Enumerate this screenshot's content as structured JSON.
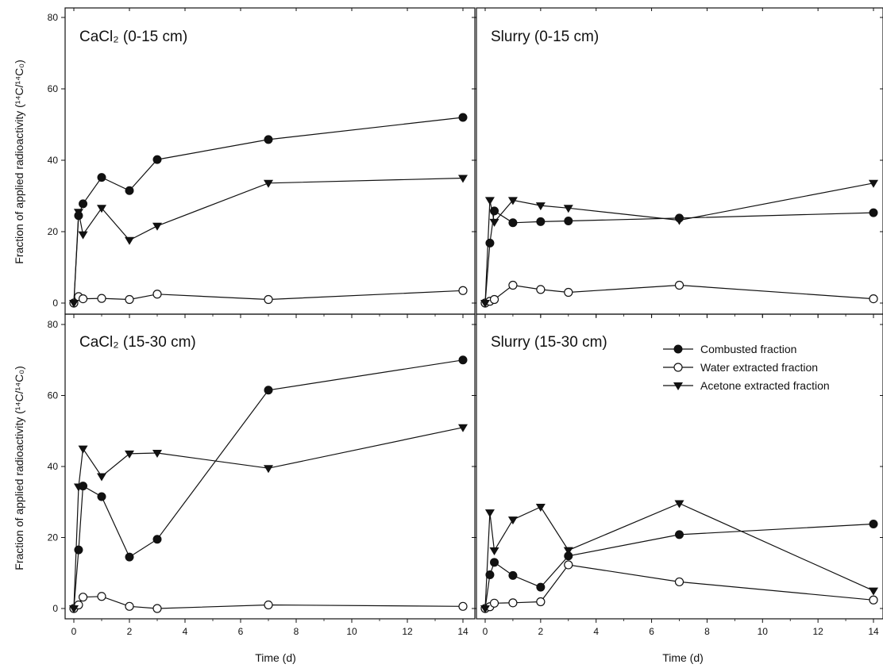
{
  "figure": {
    "ylabel": "Fraction of applied radioactivity (¹⁴C/¹⁴C₀)",
    "xlabel": "Time (d)"
  },
  "legend": [
    {
      "name": "Combusted fraction",
      "marker": "filled-circle"
    },
    {
      "name": "Water extracted fraction",
      "marker": "open-circle"
    },
    {
      "name": "Acetone extracted fraction",
      "marker": "filled-triangle-down"
    }
  ],
  "colors": {
    "ink": "#111111",
    "background": "#ffffff"
  },
  "chart_data": [
    {
      "type": "line",
      "title": "CaCl₂ (0-15 cm)",
      "xlim": [
        0,
        14
      ],
      "ylim": [
        0,
        80
      ],
      "xticks": [
        0,
        2,
        4,
        6,
        8,
        10,
        12,
        14
      ],
      "yticks": [
        0,
        20,
        40,
        60,
        80
      ],
      "series": [
        {
          "name": "Combusted fraction",
          "marker": "filled-circle",
          "x": [
            0,
            0.17,
            0.33,
            1,
            2,
            3,
            7,
            14
          ],
          "y": [
            0,
            24.5,
            27.8,
            35.2,
            31.5,
            40.2,
            45.8,
            52
          ]
        },
        {
          "name": "Water extracted fraction",
          "marker": "open-circle",
          "x": [
            0,
            0.17,
            0.33,
            1,
            2,
            3,
            7,
            14
          ],
          "y": [
            0,
            1.8,
            1.2,
            1.3,
            1,
            2.5,
            1,
            3.5
          ]
        },
        {
          "name": "Acetone extracted fraction",
          "marker": "filled-triangle-down",
          "x": [
            0,
            0.17,
            0.33,
            1,
            2,
            3,
            7,
            14
          ],
          "y": [
            0,
            25.5,
            19.2,
            26.6,
            17.6,
            21.6,
            33.6,
            35
          ]
        }
      ]
    },
    {
      "type": "line",
      "title": "Slurry (0-15 cm)",
      "xlim": [
        0,
        14
      ],
      "ylim": [
        0,
        80
      ],
      "xticks": [
        0,
        2,
        4,
        6,
        8,
        10,
        12,
        14
      ],
      "yticks": [
        0,
        20,
        40,
        60,
        80
      ],
      "series": [
        {
          "name": "Combusted fraction",
          "marker": "filled-circle",
          "x": [
            0,
            0.17,
            0.33,
            1,
            2,
            3,
            7,
            14
          ],
          "y": [
            0,
            16.8,
            25.8,
            22.5,
            22.8,
            23,
            23.8,
            25.3
          ]
        },
        {
          "name": "Water extracted fraction",
          "marker": "open-circle",
          "x": [
            0,
            0.17,
            0.33,
            1,
            2,
            3,
            7,
            14
          ],
          "y": [
            0,
            0.5,
            1,
            5,
            3.8,
            3,
            5,
            1.2
          ]
        },
        {
          "name": "Acetone extracted fraction",
          "marker": "filled-triangle-down",
          "x": [
            0,
            0.17,
            0.33,
            1,
            2,
            3,
            7,
            14
          ],
          "y": [
            0,
            28.8,
            22.7,
            28.8,
            27.3,
            26.6,
            23.2,
            33.6
          ]
        }
      ]
    },
    {
      "type": "line",
      "title": "CaCl₂ (15-30 cm)",
      "xlim": [
        0,
        14
      ],
      "ylim": [
        0,
        80
      ],
      "xticks": [
        0,
        2,
        4,
        6,
        8,
        10,
        12,
        14
      ],
      "yticks": [
        0,
        20,
        40,
        60,
        80
      ],
      "series": [
        {
          "name": "Combusted fraction",
          "marker": "filled-circle",
          "x": [
            0,
            0.17,
            0.33,
            1,
            2,
            3,
            7,
            14
          ],
          "y": [
            0,
            16.5,
            34.5,
            31.5,
            14.5,
            19.5,
            61.5,
            70
          ]
        },
        {
          "name": "Water extracted fraction",
          "marker": "open-circle",
          "x": [
            0,
            0.17,
            0.33,
            1,
            2,
            3,
            7,
            14
          ],
          "y": [
            0,
            1,
            3.2,
            3.4,
            0.6,
            0,
            1,
            0.6
          ]
        },
        {
          "name": "Acetone extracted fraction",
          "marker": "filled-triangle-down",
          "x": [
            0,
            0.17,
            0.33,
            1,
            2,
            3,
            7,
            14
          ],
          "y": [
            0,
            34.3,
            45,
            37.2,
            43.6,
            43.8,
            39.5,
            51
          ]
        }
      ]
    },
    {
      "type": "line",
      "title": "Slurry (15-30 cm)",
      "xlim": [
        0,
        14
      ],
      "ylim": [
        0,
        80
      ],
      "xticks": [
        0,
        2,
        4,
        6,
        8,
        10,
        12,
        14
      ],
      "yticks": [
        0,
        20,
        40,
        60,
        80
      ],
      "series": [
        {
          "name": "Combusted fraction",
          "marker": "filled-circle",
          "x": [
            0,
            0.17,
            0.33,
            1,
            2,
            3,
            7,
            14
          ],
          "y": [
            0,
            9.5,
            13,
            9.3,
            6,
            14.8,
            20.8,
            23.8
          ]
        },
        {
          "name": "Water extracted fraction",
          "marker": "open-circle",
          "x": [
            0,
            0.17,
            0.33,
            1,
            2,
            3,
            7,
            14
          ],
          "y": [
            0,
            0.5,
            1.5,
            1.6,
            1.9,
            12.3,
            7.5,
            2.4
          ]
        },
        {
          "name": "Acetone extracted fraction",
          "marker": "filled-triangle-down",
          "x": [
            0,
            0.17,
            0.33,
            1,
            2,
            3,
            7,
            14
          ],
          "y": [
            0,
            27,
            16.3,
            25,
            28.6,
            16.4,
            29.6,
            5
          ]
        }
      ]
    }
  ]
}
